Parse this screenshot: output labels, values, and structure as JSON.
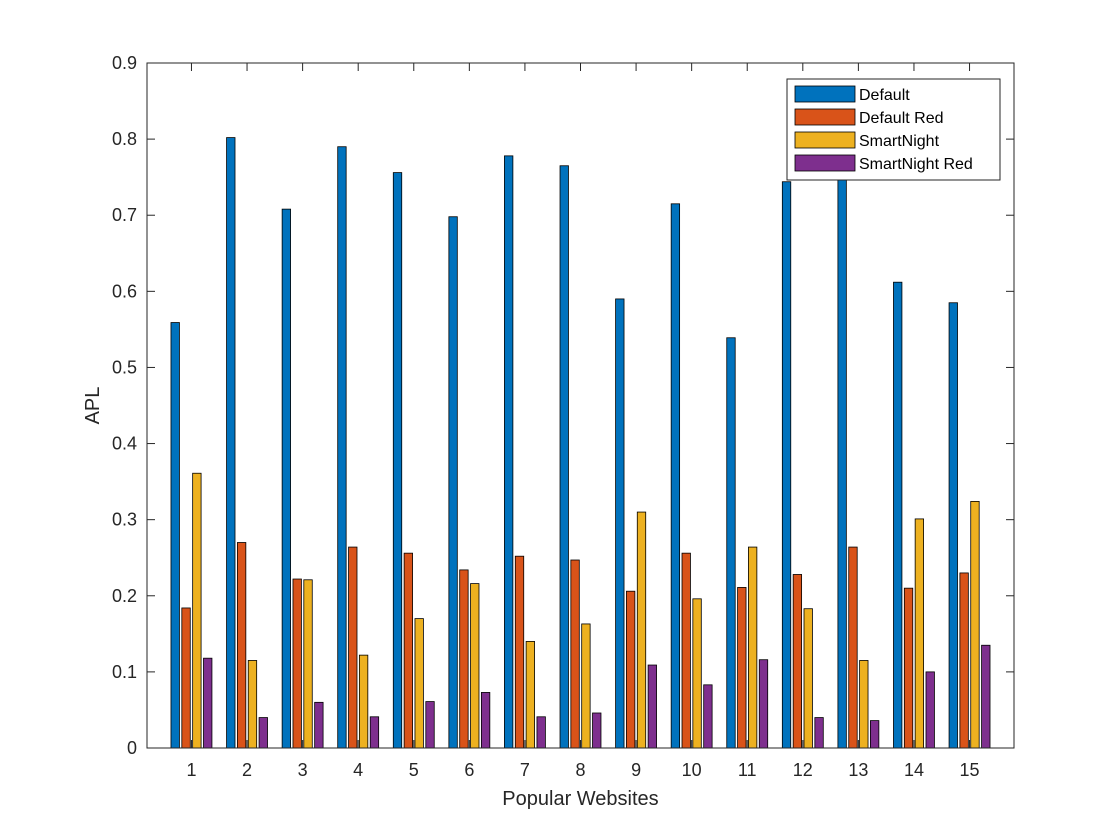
{
  "chart_data": {
    "type": "bar",
    "title": "",
    "xlabel": "Popular Websites",
    "ylabel": "APL",
    "ylim": [
      0,
      0.9
    ],
    "yticks": [
      "0",
      "0.1",
      "0.2",
      "0.3",
      "0.4",
      "0.5",
      "0.6",
      "0.7",
      "0.8",
      "0.9"
    ],
    "categories": [
      "1",
      "2",
      "3",
      "4",
      "5",
      "6",
      "7",
      "8",
      "9",
      "10",
      "11",
      "12",
      "13",
      "14",
      "15"
    ],
    "grid": false,
    "legend_position": "top-right",
    "series": [
      {
        "name": "Default",
        "color": "#0072BD",
        "values": [
          0.559,
          0.802,
          0.708,
          0.79,
          0.756,
          0.698,
          0.778,
          0.765,
          0.59,
          0.715,
          0.539,
          0.744,
          0.752,
          0.612,
          0.585
        ]
      },
      {
        "name": "Default Red",
        "color": "#D95319",
        "values": [
          0.184,
          0.27,
          0.222,
          0.264,
          0.256,
          0.234,
          0.252,
          0.247,
          0.206,
          0.256,
          0.211,
          0.228,
          0.264,
          0.21,
          0.23
        ]
      },
      {
        "name": "SmartNight",
        "color": "#EDB120",
        "values": [
          0.361,
          0.115,
          0.221,
          0.122,
          0.17,
          0.216,
          0.14,
          0.163,
          0.31,
          0.196,
          0.264,
          0.183,
          0.115,
          0.301,
          0.324
        ]
      },
      {
        "name": "SmartNight Red",
        "color": "#7E2F8E",
        "values": [
          0.118,
          0.04,
          0.06,
          0.041,
          0.061,
          0.073,
          0.041,
          0.046,
          0.109,
          0.083,
          0.116,
          0.04,
          0.036,
          0.1,
          0.135
        ]
      }
    ]
  }
}
